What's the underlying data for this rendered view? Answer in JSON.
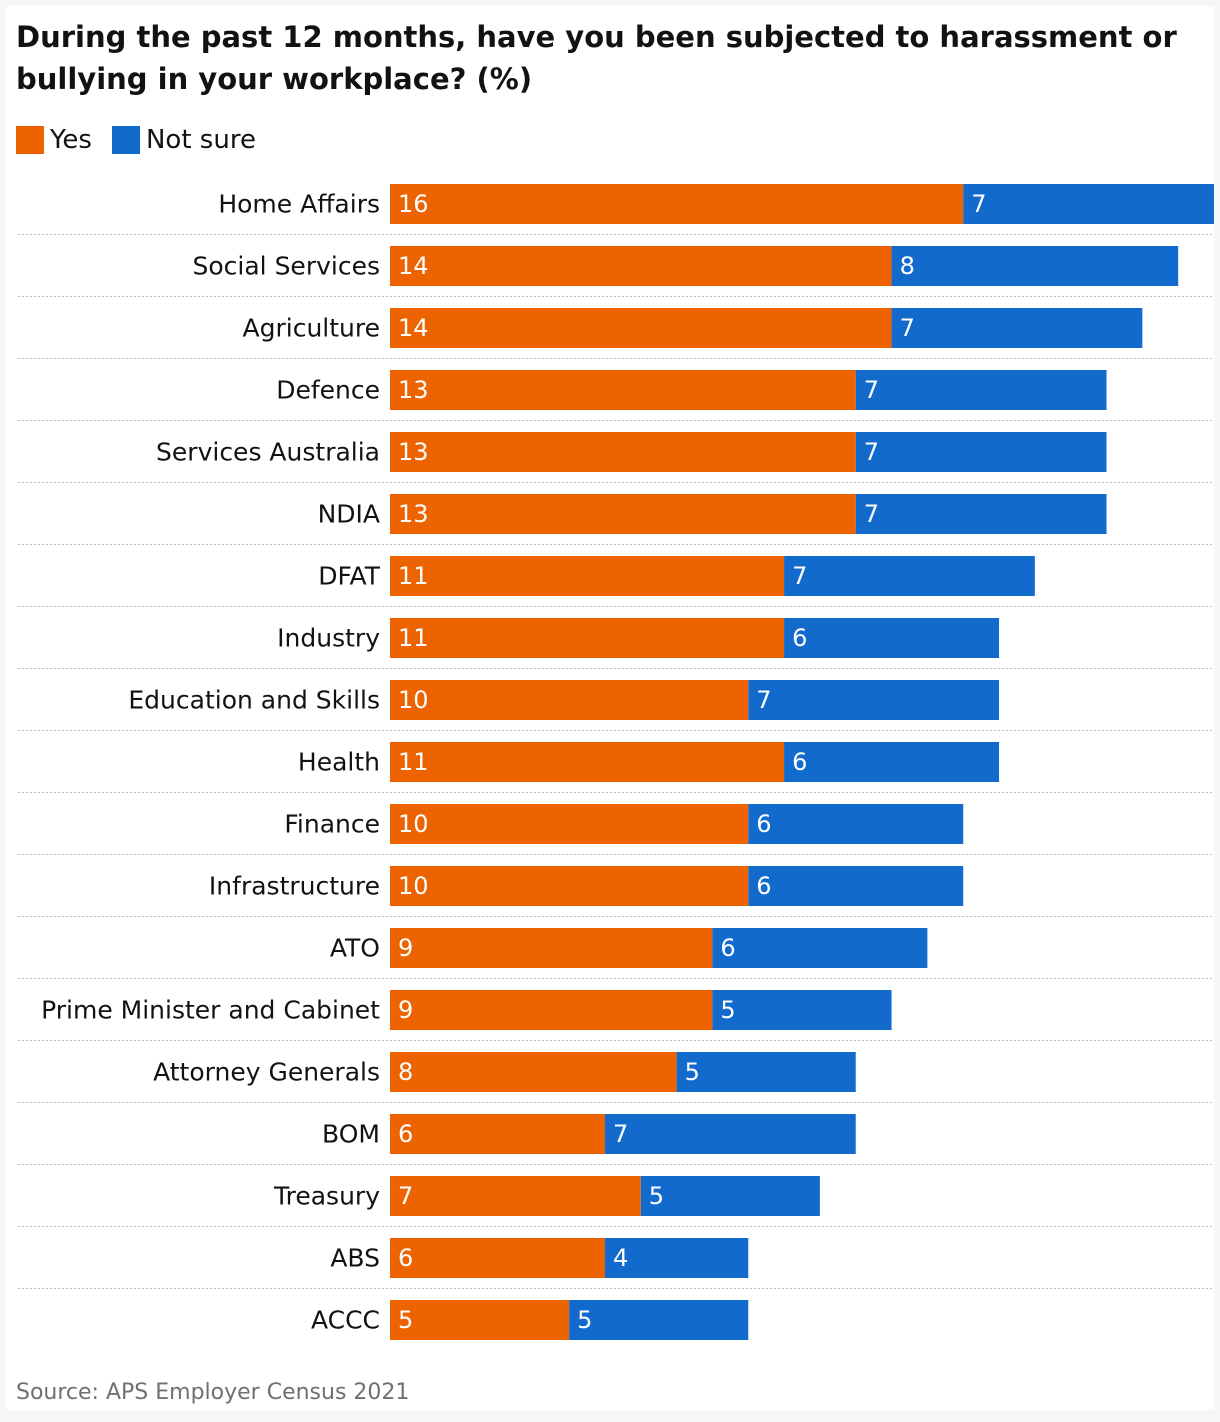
{
  "colors": {
    "yes": "#ed6300",
    "not_sure": "#126bcc",
    "label": "#121212",
    "inbar": "#ffffff",
    "divider": "#bdbdbd"
  },
  "source": "Source: APS Employer Census 2021",
  "chart_data": {
    "type": "bar",
    "orientation": "horizontal",
    "stacked": true,
    "title": "During the past 12 months, have you been subjected to harassment or bullying in your workplace? (%)",
    "legend_position": "top-left",
    "grid": false,
    "categories": [
      "Home Affairs",
      "Social Services",
      "Agriculture",
      "Defence",
      "Services Australia",
      "NDIA",
      "DFAT",
      "Industry",
      "Education and Skills",
      "Health",
      "Finance",
      "Infrastructure",
      "ATO",
      "Prime Minister and Cabinet",
      "Attorney Generals",
      "BOM",
      "Treasury",
      "ABS",
      "ACCC"
    ],
    "series": [
      {
        "name": "Yes",
        "values": [
          16,
          14,
          14,
          13,
          13,
          13,
          11,
          11,
          10,
          11,
          10,
          10,
          9,
          9,
          8,
          6,
          7,
          6,
          5
        ]
      },
      {
        "name": "Not sure",
        "values": [
          7,
          8,
          7,
          7,
          7,
          7,
          7,
          6,
          7,
          6,
          6,
          6,
          6,
          5,
          5,
          7,
          5,
          4,
          5
        ]
      }
    ],
    "xlim": [
      0,
      23
    ]
  }
}
